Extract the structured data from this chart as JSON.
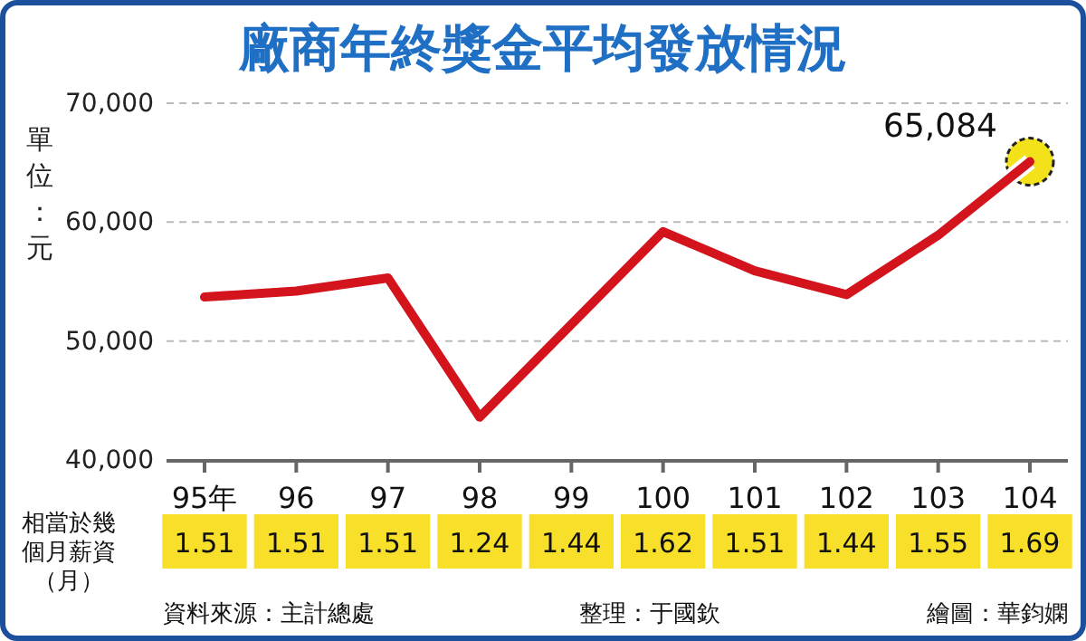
{
  "chart_data": {
    "type": "line",
    "title": "廠商年終獎金平均發放情況",
    "ylabel": "單位：元",
    "categories": [
      "95年",
      "96",
      "97",
      "98",
      "99",
      "100",
      "101",
      "102",
      "103",
      "104"
    ],
    "series": [
      {
        "color": "#d3141c",
        "values": [
          53700,
          54200,
          55300,
          43600,
          51400,
          59200,
          55900,
          53900,
          58900,
          65084
        ],
        "value_labels": [
          null,
          null,
          null,
          null,
          null,
          null,
          null,
          null,
          null,
          "65,084"
        ]
      }
    ],
    "ylim": [
      40000,
      70000
    ],
    "yticks": [
      {
        "value": 40000,
        "label": "40,000"
      },
      {
        "value": 50000,
        "label": "50,000"
      },
      {
        "value": 60000,
        "label": "60,000"
      },
      {
        "value": 70000,
        "label": "70,000"
      }
    ],
    "grid": "y",
    "marker": "none",
    "line_style": "solid",
    "annotations": [
      "相當於幾個月薪資（月）",
      "1.51",
      "1.51",
      "1.51",
      "1.24",
      "1.44",
      "1.62",
      "1.51",
      "1.44",
      "1.55",
      "1.69",
      "資料來源：主計總處",
      "整理：于國欽",
      "繪圖：華鈞嫻"
    ]
  }
}
